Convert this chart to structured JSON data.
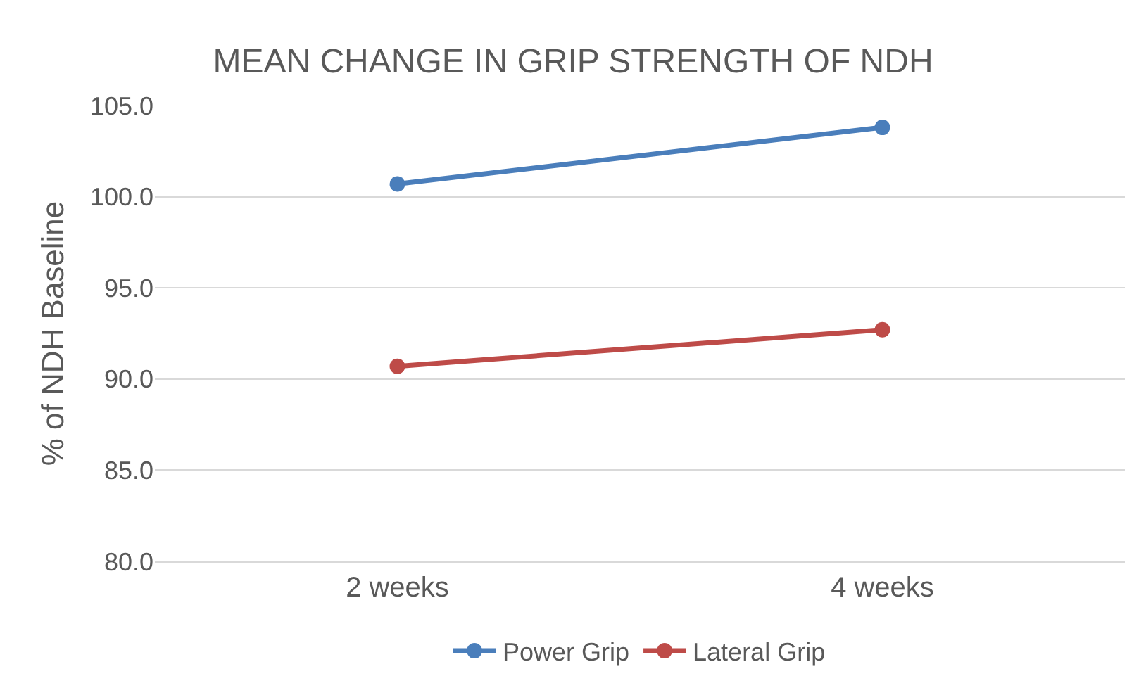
{
  "chart_data": {
    "type": "line",
    "title": "MEAN CHANGE IN GRIP STRENGTH OF NDH",
    "ylabel": "% of NDH Baseline",
    "categories": [
      "2 weeks",
      "4 weeks"
    ],
    "series": [
      {
        "name": "Power Grip",
        "color": "#4a7ebb",
        "values": [
          100.7,
          103.8
        ]
      },
      {
        "name": "Lateral Grip",
        "color": "#be4b48",
        "values": [
          90.7,
          92.7
        ]
      }
    ],
    "ylim": [
      80,
      105
    ],
    "yticks": [
      {
        "value": 80,
        "label": "80.0"
      },
      {
        "value": 85,
        "label": "85.0"
      },
      {
        "value": 90,
        "label": "90.0"
      },
      {
        "value": 95,
        "label": "95.0"
      },
      {
        "value": 100,
        "label": "100.0"
      },
      {
        "value": 105,
        "label": "105.0"
      }
    ],
    "grid": "y",
    "legend": "bottom",
    "marker": "circle",
    "line_style": "solid"
  }
}
